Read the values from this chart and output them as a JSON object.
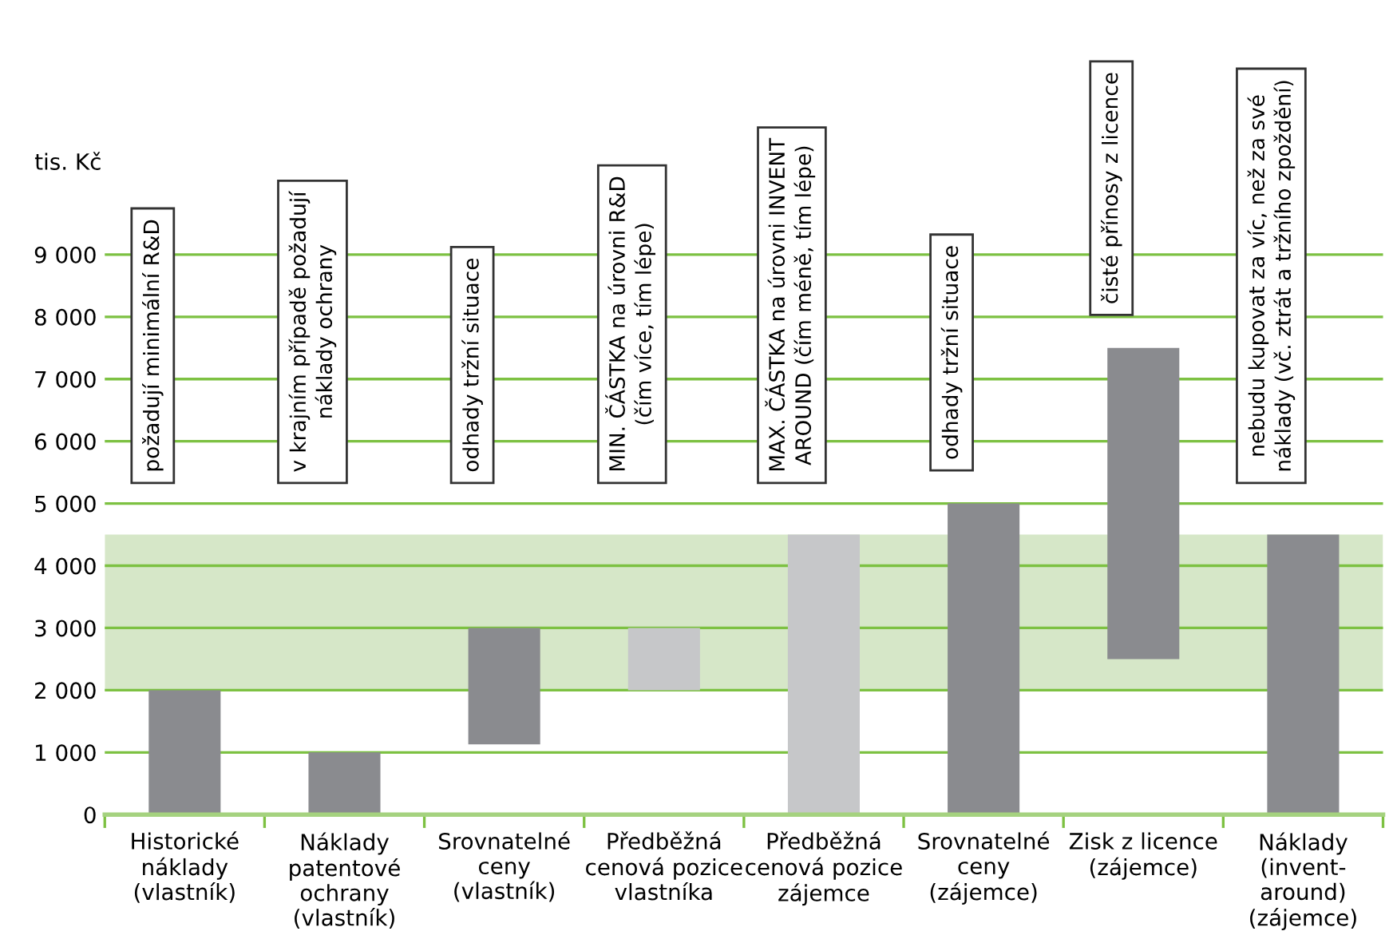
{
  "chart_data": {
    "type": "bar",
    "ylabel": "tis. Kč",
    "categories": [
      "Historické\nnáklady\n(vlastník)",
      "Náklady\npatentové\nochrany\n(vlastník)",
      "Srovnatelné\nceny\n(vlastník)",
      "Předběžná\ncenová pozice\nvlastníka",
      "Předběžná\ncenová pozice\nzájemce",
      "Srovnatelné\nceny\n(zájemce)",
      "Zisk z licence\n(zájemce)",
      "Náklady\n(invent-\naround)\n(zájemce)"
    ],
    "base": [
      0,
      0,
      1130,
      2000,
      0,
      0,
      2500,
      0
    ],
    "values": [
      2000,
      1000,
      1870,
      1000,
      4500,
      5000,
      5000,
      4500
    ],
    "colors": [
      "#8a8b8f",
      "#8a8b8f",
      "#8a8b8f",
      "#c6c7c9",
      "#c6c7c9",
      "#8a8b8f",
      "#8a8b8f",
      "#8a8b8f"
    ],
    "bands": [
      {
        "axis": "y",
        "from": 2000,
        "to": 4500,
        "color": "#d6e7c8"
      }
    ],
    "annotations": [
      "požadují minimální R&D",
      "v krajním případě požadují\nnáklady ochrany",
      "odhady tržní situace",
      "MIN. ČÁSTKA na úrovni R&D\n(čím více, tím lépe)",
      "MAX. ČÁSTKA na úrovni INVENT\nAROUND (čím méně, tím lépe)",
      "odhady tržní situace",
      "čisté přínosy z licence",
      "nebudu kupovat za víc, než za své\nnáklady (vč. ztrát a tržního zpoždění)"
    ],
    "ylim": [
      0,
      9800
    ],
    "yticks": [
      0,
      {
        "value": 1000,
        "label": "1 000"
      },
      {
        "value": 2000,
        "label": "2 000"
      },
      {
        "value": 3000,
        "label": "3 000"
      },
      {
        "value": 4000,
        "label": "4 000"
      },
      {
        "value": 5000,
        "label": "5 000"
      },
      {
        "value": 6000,
        "label": "6 000"
      },
      {
        "value": 7000,
        "label": "7 000"
      },
      {
        "value": 8000,
        "label": "8 000"
      },
      {
        "value": 9000,
        "label": "9 000"
      }
    ],
    "grid": "y"
  }
}
